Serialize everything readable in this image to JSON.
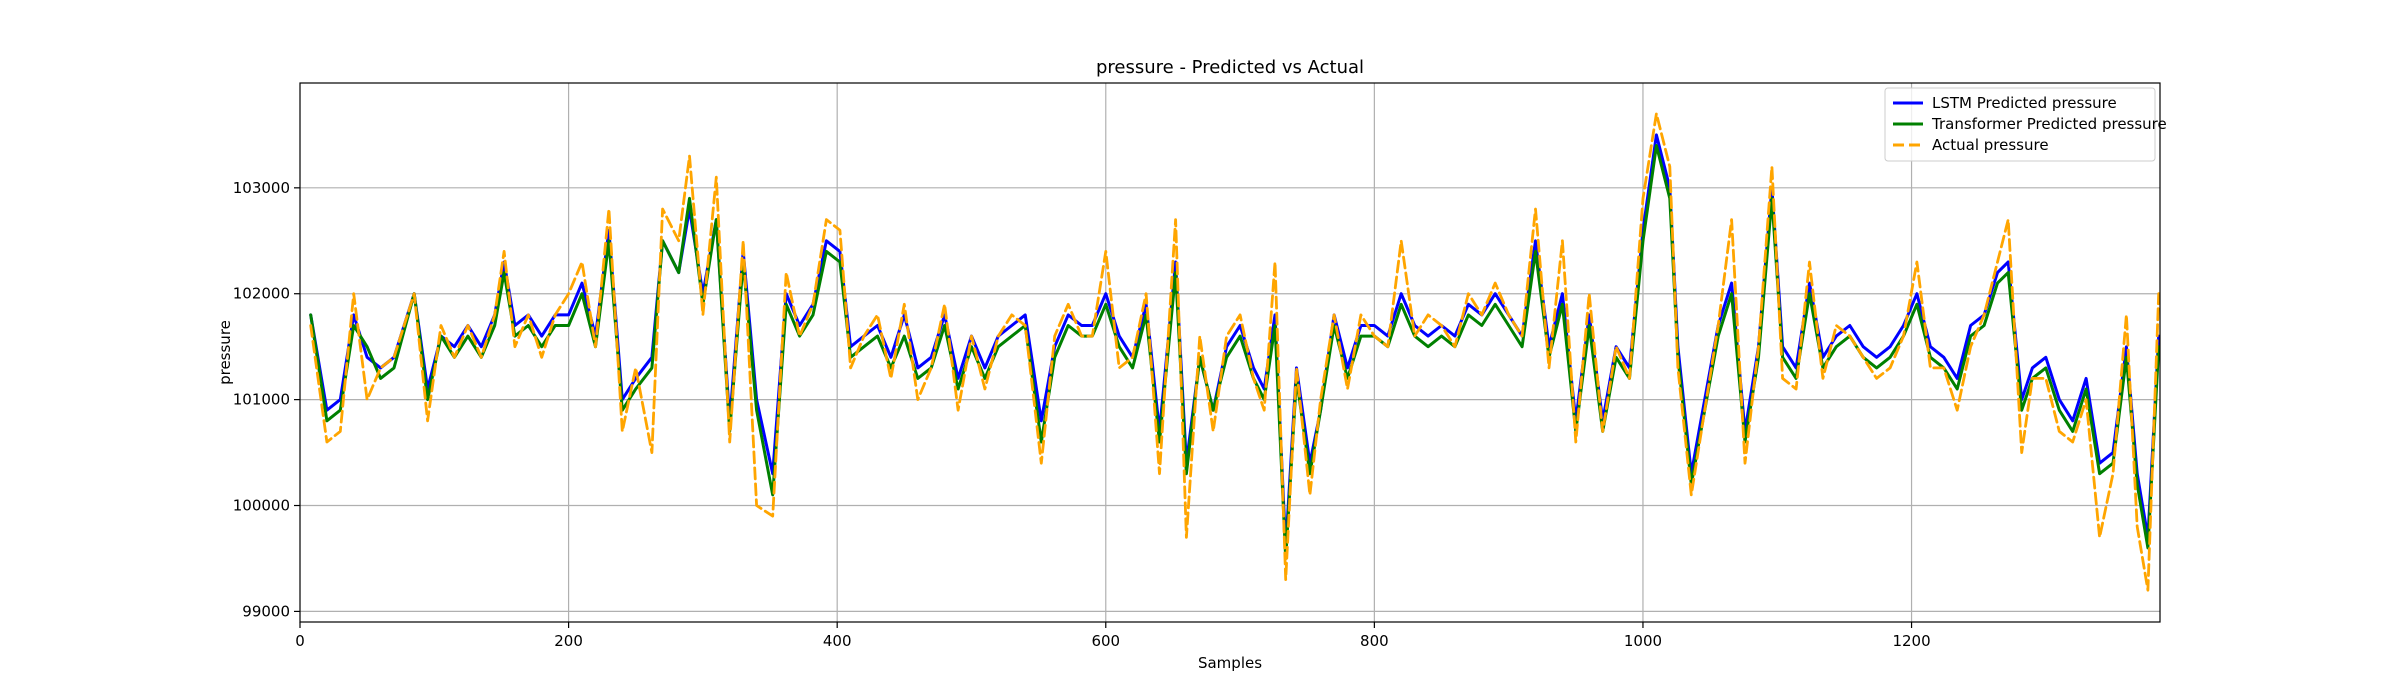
{
  "chart_data": {
    "type": "line",
    "title": "pressure - Predicted vs Actual",
    "xlabel": "Samples",
    "ylabel": "pressure",
    "xlim": [
      0,
      1385
    ],
    "ylim": [
      98900,
      103990
    ],
    "xticks": [
      0,
      200,
      400,
      600,
      800,
      1000,
      1200
    ],
    "yticks": [
      99000,
      100000,
      101000,
      102000,
      103000
    ],
    "grid": true,
    "legend_position": "top-right",
    "x": [
      8,
      20,
      30,
      40,
      50,
      60,
      70,
      85,
      95,
      105,
      115,
      125,
      135,
      145,
      152,
      160,
      170,
      180,
      190,
      200,
      210,
      220,
      230,
      240,
      250,
      262,
      270,
      282,
      290,
      300,
      310,
      320,
      330,
      340,
      352,
      362,
      372,
      382,
      392,
      402,
      410,
      420,
      430,
      440,
      450,
      460,
      470,
      480,
      490,
      500,
      510,
      520,
      530,
      540,
      552,
      562,
      572,
      582,
      590,
      600,
      610,
      620,
      630,
      640,
      652,
      660,
      670,
      680,
      690,
      700,
      710,
      718,
      726,
      734,
      742,
      752,
      760,
      770,
      780,
      790,
      800,
      810,
      820,
      830,
      840,
      850,
      860,
      870,
      880,
      890,
      900,
      910,
      920,
      930,
      940,
      950,
      960,
      970,
      980,
      990,
      1000,
      1010,
      1020,
      1026,
      1036,
      1046,
      1056,
      1066,
      1076,
      1086,
      1096,
      1104,
      1114,
      1124,
      1134,
      1144,
      1154,
      1164,
      1174,
      1184,
      1194,
      1204,
      1214,
      1224,
      1234,
      1244,
      1254,
      1264,
      1272,
      1282,
      1290,
      1300,
      1310,
      1320,
      1330,
      1340,
      1350,
      1360,
      1368,
      1376,
      1384
    ],
    "series": [
      {
        "name": "LSTM Predicted pressure",
        "color": "#0000ff",
        "dash": "solid",
        "values": [
          101800,
          100900,
          101000,
          101800,
          101400,
          101300,
          101400,
          102000,
          101100,
          101600,
          101500,
          101700,
          101500,
          101800,
          102300,
          101700,
          101800,
          101600,
          101800,
          101800,
          102100,
          101600,
          102600,
          101000,
          101200,
          101400,
          102500,
          102200,
          102800,
          102000,
          102700,
          100800,
          102400,
          101000,
          100300,
          102000,
          101700,
          101900,
          102500,
          102400,
          101500,
          101600,
          101700,
          101400,
          101800,
          101300,
          101400,
          101800,
          101200,
          101600,
          101300,
          101600,
          101700,
          101800,
          100800,
          101500,
          101800,
          101700,
          101700,
          102000,
          101600,
          101400,
          101900,
          100700,
          102300,
          100400,
          101400,
          100900,
          101500,
          101700,
          101300,
          101100,
          101800,
          99600,
          101300,
          100400,
          100900,
          101800,
          101300,
          101700,
          101700,
          101600,
          102000,
          101700,
          101600,
          101700,
          101600,
          101900,
          101800,
          102000,
          101800,
          101600,
          102500,
          101500,
          102000,
          100800,
          101800,
          100800,
          101500,
          101300,
          102600,
          103500,
          103000,
          101500,
          100300,
          101000,
          101700,
          102100,
          100700,
          101500,
          103000,
          101500,
          101300,
          102100,
          101400,
          101600,
          101700,
          101500,
          101400,
          101500,
          101700,
          102000,
          101500,
          101400,
          101200,
          101700,
          101800,
          102200,
          102300,
          101000,
          101300,
          101400,
          101000,
          100800,
          101200,
          100400,
          100500,
          101500,
          100300,
          99700,
          101600
        ]
      },
      {
        "name": "Transformer Predicted pressure",
        "color": "#008000",
        "dash": "solid",
        "values": [
          101800,
          100800,
          100900,
          101700,
          101500,
          101200,
          101300,
          102000,
          101000,
          101600,
          101400,
          101600,
          101400,
          101700,
          102200,
          101600,
          101700,
          101500,
          101700,
          101700,
          102000,
          101500,
          102500,
          100900,
          101100,
          101300,
          102500,
          102200,
          102900,
          101900,
          102700,
          100700,
          102300,
          100900,
          100100,
          101900,
          101600,
          101800,
          102400,
          102300,
          101400,
          101500,
          101600,
          101300,
          101600,
          101200,
          101300,
          101700,
          101100,
          101500,
          101200,
          101500,
          101600,
          101700,
          100600,
          101400,
          101700,
          101600,
          101600,
          101900,
          101500,
          101300,
          101800,
          100600,
          102200,
          100300,
          101400,
          100900,
          101400,
          101600,
          101200,
          101000,
          101700,
          99500,
          101200,
          100300,
          100900,
          101700,
          101200,
          101600,
          101600,
          101500,
          101900,
          101600,
          101500,
          101600,
          101500,
          101800,
          101700,
          101900,
          101700,
          101500,
          102400,
          101400,
          101900,
          100700,
          101700,
          100700,
          101400,
          101200,
          102500,
          103400,
          102900,
          101400,
          100200,
          100900,
          101600,
          102000,
          100600,
          101400,
          102900,
          101400,
          101200,
          102000,
          101300,
          101500,
          101600,
          101400,
          101300,
          101400,
          101600,
          101900,
          101400,
          101300,
          101100,
          101600,
          101700,
          102100,
          102200,
          100900,
          101200,
          101300,
          100900,
          100700,
          101100,
          100300,
          100400,
          101400,
          100200,
          99600,
          101500
        ]
      },
      {
        "name": "Actual pressure",
        "color": "#ffa500",
        "dash": "dashed",
        "values": [
          101700,
          100600,
          100700,
          102000,
          101000,
          101300,
          101400,
          102000,
          100800,
          101700,
          101400,
          101700,
          101400,
          101800,
          102400,
          101500,
          101800,
          101400,
          101800,
          102000,
          102300,
          101500,
          102800,
          100700,
          101300,
          100500,
          102800,
          102500,
          103300,
          101800,
          103100,
          100600,
          102500,
          100000,
          99900,
          102200,
          101600,
          101900,
          102700,
          102600,
          101300,
          101600,
          101800,
          101200,
          101900,
          101000,
          101300,
          101900,
          100900,
          101600,
          101100,
          101600,
          101800,
          101700,
          100400,
          101600,
          101900,
          101600,
          101600,
          102400,
          101300,
          101400,
          102000,
          100300,
          102700,
          99700,
          101600,
          100700,
          101600,
          101800,
          101200,
          100900,
          102300,
          99300,
          101300,
          100100,
          101000,
          101800,
          101100,
          101800,
          101600,
          101500,
          102500,
          101600,
          101800,
          101700,
          101500,
          102000,
          101800,
          102100,
          101800,
          101600,
          102800,
          101300,
          102500,
          100600,
          102000,
          100700,
          101500,
          101200,
          102900,
          103700,
          103200,
          101300,
          100100,
          100900,
          101700,
          102700,
          100400,
          101500,
          103200,
          101200,
          101100,
          102300,
          101200,
          101700,
          101600,
          101400,
          101200,
          101300,
          101600,
          102300,
          101300,
          101300,
          100900,
          101500,
          101800,
          102300,
          102700,
          100500,
          101200,
          101200,
          100700,
          100600,
          101000,
          99700,
          100300,
          101800,
          99800,
          99200,
          102000
        ]
      }
    ]
  }
}
